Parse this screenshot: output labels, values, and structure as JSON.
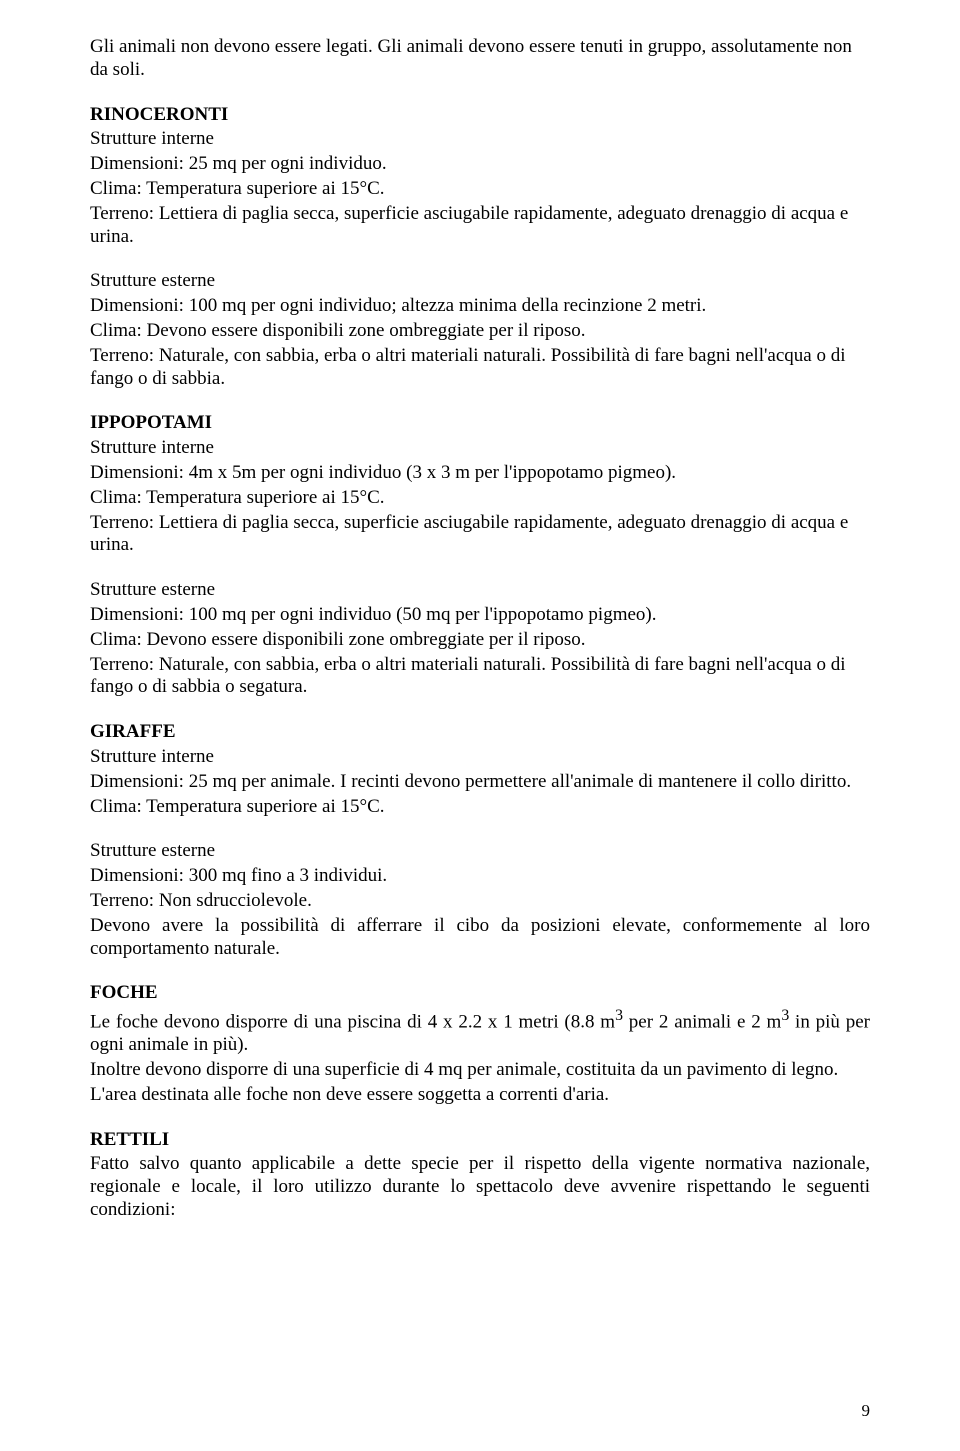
{
  "intro": "Gli animali non devono essere legati. Gli animali devono essere tenuti in gruppo, assolutamente non da soli.",
  "rinoceronti": {
    "title": "RINOCERONTI",
    "int_label": "Strutture interne",
    "int_dim": "Dimensioni: 25 mq per ogni individuo.",
    "int_clima": "Clima: Temperatura superiore ai 15°C.",
    "int_terreno": "Terreno: Lettiera di paglia secca, superficie asciugabile rapidamente, adeguato drenaggio di acqua e urina.",
    "ext_label": "Strutture esterne",
    "ext_dim": "Dimensioni: 100 mq per ogni individuo; altezza minima della recinzione 2 metri.",
    "ext_clima": "Clima: Devono essere disponibili zone ombreggiate per il riposo.",
    "ext_terreno": "Terreno: Naturale, con sabbia, erba o altri materiali naturali. Possibilità di fare bagni nell'acqua o di fango o di sabbia."
  },
  "ippopotami": {
    "title": "IPPOPOTAMI",
    "int_label": "Strutture interne",
    "int_dim": "Dimensioni: 4m x 5m per ogni individuo (3 x 3 m per l'ippopotamo pigmeo).",
    "int_clima": "Clima: Temperatura superiore ai 15°C.",
    "int_terreno": "Terreno: Lettiera di paglia secca, superficie asciugabile rapidamente, adeguato drenaggio di acqua e urina.",
    "ext_label": "Strutture esterne",
    "ext_dim": "Dimensioni: 100 mq per ogni individuo (50 mq  per l'ippopotamo pigmeo).",
    "ext_clima": "Clima: Devono essere disponibili zone ombreggiate per il riposo.",
    "ext_terreno": "Terreno: Naturale, con sabbia, erba o altri materiali naturali. Possibilità di fare bagni nell'acqua o di fango o di sabbia o segatura."
  },
  "giraffe": {
    "title": "GIRAFFE",
    "int_label": "Strutture interne",
    "int_dim": "Dimensioni: 25 mq per animale. I recinti devono permettere all'animale di mantenere il collo diritto.",
    "int_clima": "Clima: Temperatura superiore ai 15°C.",
    "ext_label": "Strutture esterne",
    "ext_dim": "Dimensioni: 300 mq   fino a 3 individui.",
    "ext_terreno": "Terreno: Non sdrucciolevole.",
    "ext_note": "Devono avere la possibilità di afferrare il cibo da posizioni elevate, conformemente al loro comportamento naturale."
  },
  "foche": {
    "title": "FOCHE",
    "line1_pre": "Le foche devono disporre di una piscina di 4 x 2.2 x 1 metri (8.8 m",
    "sup3a": "3",
    "line1_mid": " per 2 animali e 2 m",
    "sup3b": "3",
    "line1_post": " in più per ogni animale in più).",
    "line2": "Inoltre devono disporre di una superficie di  4  mq per animale, costituita da un pavimento di legno.",
    "line3": "L'area destinata alle foche non deve essere soggetta a correnti d'aria."
  },
  "rettili": {
    "title": "RETTILI",
    "line1": "Fatto salvo quanto applicabile a dette specie per il rispetto della vigente normativa nazionale, regionale e locale, il loro utilizzo durante lo spettacolo deve avvenire rispettando le seguenti condizioni:"
  },
  "page_number": "9"
}
